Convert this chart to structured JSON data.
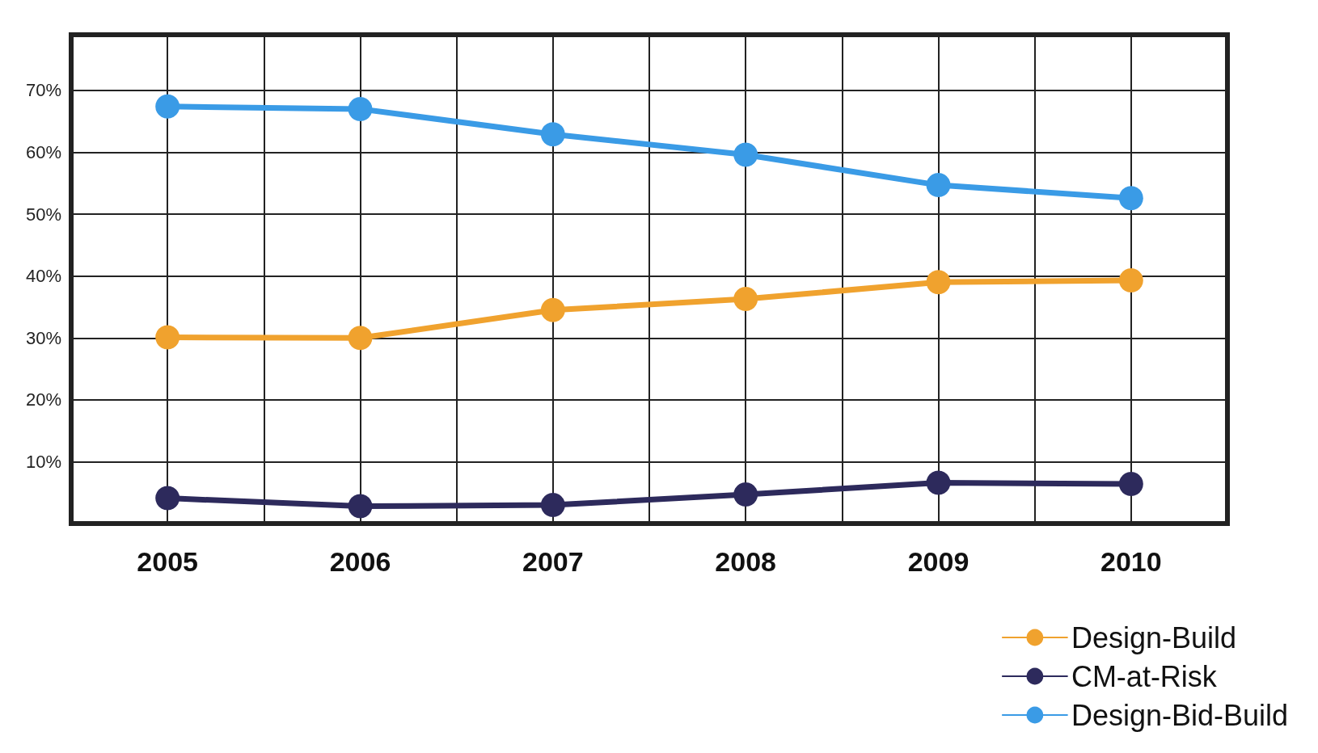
{
  "chart_data": {
    "type": "line",
    "x": [
      2005,
      2006,
      2007,
      2008,
      2009,
      2010
    ],
    "xlim": [
      2004.5,
      2010.5
    ],
    "xticks": [
      {
        "value": 2004.5,
        "label": null
      },
      2005,
      {
        "value": 2005.5,
        "label": null
      },
      2006,
      {
        "value": 2006.5,
        "label": null
      },
      2007,
      {
        "value": 2007.5,
        "label": null
      },
      2008,
      {
        "value": 2008.5,
        "label": null
      },
      2009,
      {
        "value": 2009.5,
        "label": null
      },
      2010,
      {
        "value": 2010.5,
        "label": null
      }
    ],
    "ylim": [
      0,
      79
    ],
    "yticks": [
      {
        "value": 10,
        "label": "10%"
      },
      {
        "value": 20,
        "label": "20%"
      },
      {
        "value": 30,
        "label": "30%"
      },
      {
        "value": 40,
        "label": "40%"
      },
      {
        "value": 50,
        "label": "50%"
      },
      {
        "value": 60,
        "label": "60%"
      },
      {
        "value": 70,
        "label": "70%"
      }
    ],
    "series": [
      {
        "name": "Design-Build",
        "color": "#f0a22e",
        "values": [
          30.1,
          30,
          34.5,
          36.3,
          39,
          39.3
        ]
      },
      {
        "name": "CM-at-Risk",
        "color": "#2d2a5c",
        "values": [
          4.1,
          2.8,
          3,
          4.7,
          6.6,
          6.4
        ]
      },
      {
        "name": "Design-Bid-Build",
        "color": "#3a9be6",
        "values": [
          67.4,
          67,
          62.9,
          59.6,
          54.7,
          52.6
        ]
      }
    ],
    "grid": true,
    "legend": "bottom right",
    "marker": "circle",
    "line_style": "solid"
  }
}
